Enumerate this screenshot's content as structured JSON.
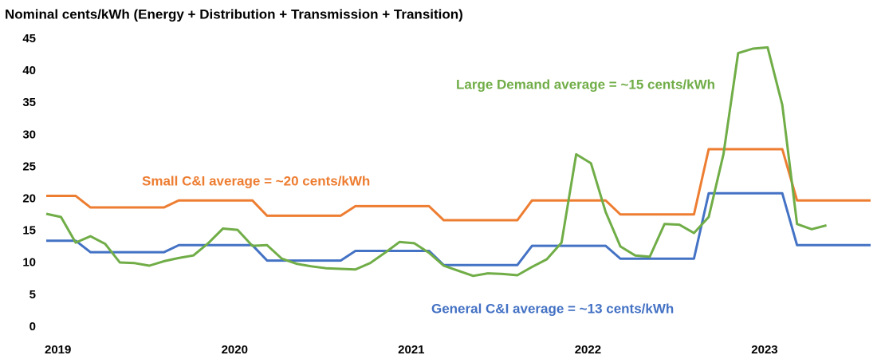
{
  "chart_data": {
    "type": "line",
    "title": "Nominal cents/kWh (Energy + Distribution + Transmission + Transition)",
    "annotations": [
      "Large Demand average = ~15 cents/kWh",
      "Small C&I average = ~20 cents/kWh",
      "General C&I average = ~13 cents/kWh"
    ],
    "categories": [
      "2019",
      null,
      null,
      null,
      null,
      null,
      null,
      null,
      null,
      null,
      null,
      null,
      "2020",
      null,
      null,
      null,
      null,
      null,
      null,
      null,
      null,
      null,
      null,
      null,
      "2021",
      null,
      null,
      null,
      null,
      null,
      null,
      null,
      null,
      null,
      null,
      null,
      "2022",
      null,
      null,
      null,
      null,
      null,
      null,
      null,
      null,
      null,
      null,
      null,
      "2023",
      null,
      null,
      null,
      null,
      null,
      null,
      null,
      null
    ],
    "ylim": [
      0,
      45
    ],
    "yticks": [
      0,
      5,
      10,
      15,
      20,
      25,
      30,
      35,
      40,
      45
    ],
    "grid": false,
    "series": [
      {
        "name": "General C&I",
        "color": "#4472c4",
        "values": [
          13.5,
          13.5,
          13.5,
          11.7,
          11.7,
          11.7,
          11.7,
          11.7,
          11.7,
          12.8,
          12.8,
          12.8,
          12.8,
          12.8,
          12.8,
          10.4,
          10.4,
          10.4,
          10.4,
          10.4,
          10.4,
          11.9,
          11.9,
          11.9,
          11.9,
          11.9,
          11.9,
          9.7,
          9.7,
          9.7,
          9.7,
          9.7,
          9.7,
          12.7,
          12.7,
          12.7,
          12.7,
          12.7,
          12.7,
          10.7,
          10.7,
          10.7,
          10.7,
          10.7,
          10.7,
          20.9,
          20.9,
          20.9,
          20.9,
          20.9,
          20.9,
          12.8,
          12.8,
          12.8,
          12.8,
          12.8,
          12.8
        ]
      },
      {
        "name": "Small C&I",
        "color": "#ed7d31",
        "values": [
          20.5,
          20.5,
          20.5,
          18.7,
          18.7,
          18.7,
          18.7,
          18.7,
          18.7,
          19.8,
          19.8,
          19.8,
          19.8,
          19.8,
          19.8,
          17.4,
          17.4,
          17.4,
          17.4,
          17.4,
          17.4,
          18.9,
          18.9,
          18.9,
          18.9,
          18.9,
          18.9,
          16.7,
          16.7,
          16.7,
          16.7,
          16.7,
          16.7,
          19.8,
          19.8,
          19.8,
          19.8,
          19.8,
          19.8,
          17.6,
          17.6,
          17.6,
          17.6,
          17.6,
          17.6,
          27.8,
          27.8,
          27.8,
          27.8,
          27.8,
          27.8,
          19.8,
          19.8,
          19.8,
          19.8,
          19.8,
          19.8
        ]
      },
      {
        "name": "Large Demand",
        "color": "#70ad47",
        "values": [
          17.7,
          17.2,
          13.2,
          14.2,
          13.0,
          10.1,
          10.0,
          9.6,
          10.3,
          10.8,
          11.2,
          13.1,
          15.4,
          15.2,
          12.7,
          12.8,
          10.7,
          9.9,
          9.5,
          9.2,
          9.1,
          9.0,
          10.0,
          11.6,
          13.3,
          13.1,
          11.6,
          9.6,
          8.8,
          8.0,
          8.4,
          8.3,
          8.1,
          9.4,
          10.6,
          13.2,
          27.0,
          25.6,
          18.0,
          12.6,
          11.2,
          11.0,
          16.1,
          16.0,
          14.7,
          17.2,
          27.0,
          42.8,
          43.5,
          43.7,
          34.7,
          16.1,
          15.3,
          15.9,
          null,
          null,
          null
        ]
      }
    ]
  }
}
